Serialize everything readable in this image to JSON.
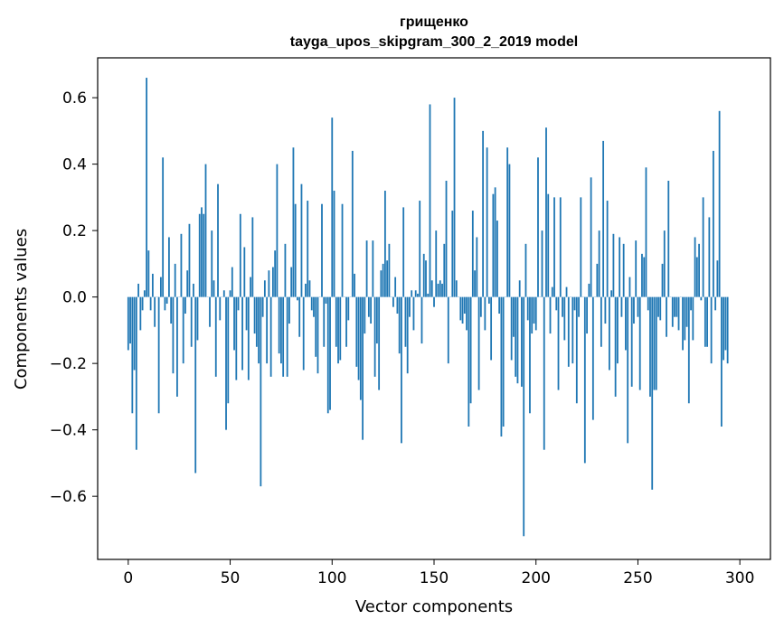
{
  "chart_data": {
    "type": "bar",
    "title": "грищенко",
    "subtitle": "tayga_upos_skipgram_300_2_2019 model",
    "xlabel": "Vector components",
    "ylabel": "Components values",
    "xlim": [
      -15,
      315
    ],
    "ylim": [
      -0.79,
      0.72
    ],
    "xticks": [
      0,
      50,
      100,
      150,
      200,
      250,
      300
    ],
    "xtick_labels": [
      "0",
      "50",
      "100",
      "150",
      "200",
      "250",
      "300"
    ],
    "yticks": [
      -0.6,
      -0.4,
      -0.2,
      0.0,
      0.2,
      0.4,
      0.6
    ],
    "ytick_labels": [
      "−0.6",
      "−0.4",
      "−0.2",
      "0.0",
      "0.2",
      "0.4",
      "0.6"
    ],
    "grid": false,
    "bar_color": "#1f77b4",
    "values": [
      -0.16,
      -0.14,
      -0.35,
      -0.22,
      -0.46,
      0.04,
      -0.1,
      -0.04,
      0.02,
      0.66,
      0.14,
      -0.04,
      0.07,
      -0.09,
      0.0,
      -0.35,
      0.06,
      0.42,
      -0.04,
      -0.02,
      0.18,
      -0.08,
      -0.23,
      0.1,
      -0.3,
      0.0,
      0.19,
      -0.2,
      -0.05,
      0.08,
      0.22,
      -0.15,
      0.04,
      -0.53,
      -0.13,
      0.25,
      0.27,
      0.25,
      0.4,
      0.0,
      -0.09,
      0.2,
      0.05,
      -0.24,
      0.34,
      -0.07,
      0.0,
      0.02,
      -0.4,
      -0.32,
      0.02,
      0.09,
      -0.16,
      -0.25,
      -0.04,
      0.25,
      -0.22,
      0.15,
      -0.1,
      -0.25,
      0.06,
      0.24,
      -0.11,
      -0.15,
      -0.2,
      -0.57,
      -0.06,
      0.05,
      -0.2,
      0.08,
      -0.24,
      0.09,
      0.14,
      0.4,
      -0.17,
      -0.2,
      -0.24,
      0.16,
      -0.24,
      -0.08,
      0.09,
      0.45,
      0.28,
      -0.01,
      -0.12,
      0.34,
      -0.22,
      0.04,
      0.29,
      0.05,
      -0.04,
      -0.06,
      -0.18,
      -0.23,
      0.0,
      0.28,
      -0.15,
      -0.02,
      -0.35,
      -0.34,
      0.54,
      0.32,
      -0.15,
      -0.2,
      -0.19,
      0.28,
      0.0,
      -0.15,
      -0.07,
      0.0,
      0.44,
      0.07,
      -0.21,
      -0.25,
      -0.31,
      -0.43,
      -0.11,
      0.17,
      -0.06,
      -0.08,
      0.17,
      -0.24,
      -0.14,
      -0.28,
      0.08,
      0.1,
      0.32,
      0.11,
      0.16,
      0.0,
      -0.03,
      0.06,
      -0.05,
      -0.17,
      -0.44,
      0.27,
      -0.15,
      -0.23,
      -0.06,
      0.02,
      -0.1,
      0.02,
      0.01,
      0.29,
      -0.14,
      0.13,
      0.11,
      0.01,
      0.58,
      0.05,
      -0.03,
      0.2,
      0.04,
      0.05,
      0.04,
      0.16,
      0.35,
      -0.2,
      0.0,
      0.26,
      0.6,
      0.05,
      0.0,
      -0.07,
      -0.08,
      -0.05,
      -0.1,
      -0.39,
      -0.32,
      0.26,
      0.08,
      0.18,
      -0.28,
      -0.06,
      0.5,
      -0.1,
      0.45,
      -0.02,
      -0.19,
      0.31,
      0.33,
      0.23,
      -0.05,
      -0.42,
      -0.39,
      0.0,
      0.45,
      0.4,
      -0.19,
      -0.12,
      -0.24,
      -0.26,
      0.05,
      -0.27,
      -0.72,
      0.16,
      -0.07,
      -0.35,
      -0.11,
      -0.08,
      -0.1,
      0.42,
      0.0,
      0.2,
      -0.46,
      0.51,
      0.31,
      -0.11,
      0.03,
      0.3,
      -0.04,
      -0.28,
      0.3,
      -0.06,
      -0.13,
      0.03,
      -0.21,
      0.0,
      -0.2,
      -0.04,
      -0.32,
      -0.06,
      0.3,
      0.0,
      -0.5,
      -0.11,
      0.04,
      0.36,
      -0.37,
      0.0,
      0.1,
      0.2,
      -0.15,
      0.47,
      -0.08,
      0.29,
      -0.22,
      0.02,
      0.19,
      -0.3,
      -0.2,
      0.18,
      -0.06,
      0.16,
      -0.16,
      -0.44,
      0.06,
      -0.27,
      -0.08,
      0.17,
      -0.06,
      -0.28,
      0.13,
      0.12,
      0.39,
      -0.04,
      -0.3,
      -0.58,
      -0.28,
      -0.28,
      -0.06,
      -0.07,
      0.1,
      0.2,
      -0.12,
      0.35,
      0.0,
      -0.09,
      -0.06,
      -0.06,
      -0.1,
      0.0,
      -0.16,
      -0.13,
      -0.09,
      -0.32,
      -0.04,
      -0.13,
      0.18,
      0.12,
      0.16,
      -0.01,
      0.3,
      -0.15,
      -0.15,
      0.24,
      -0.2,
      0.44,
      -0.04,
      0.11,
      0.56,
      -0.39,
      -0.19,
      -0.16,
      -0.2
    ]
  }
}
